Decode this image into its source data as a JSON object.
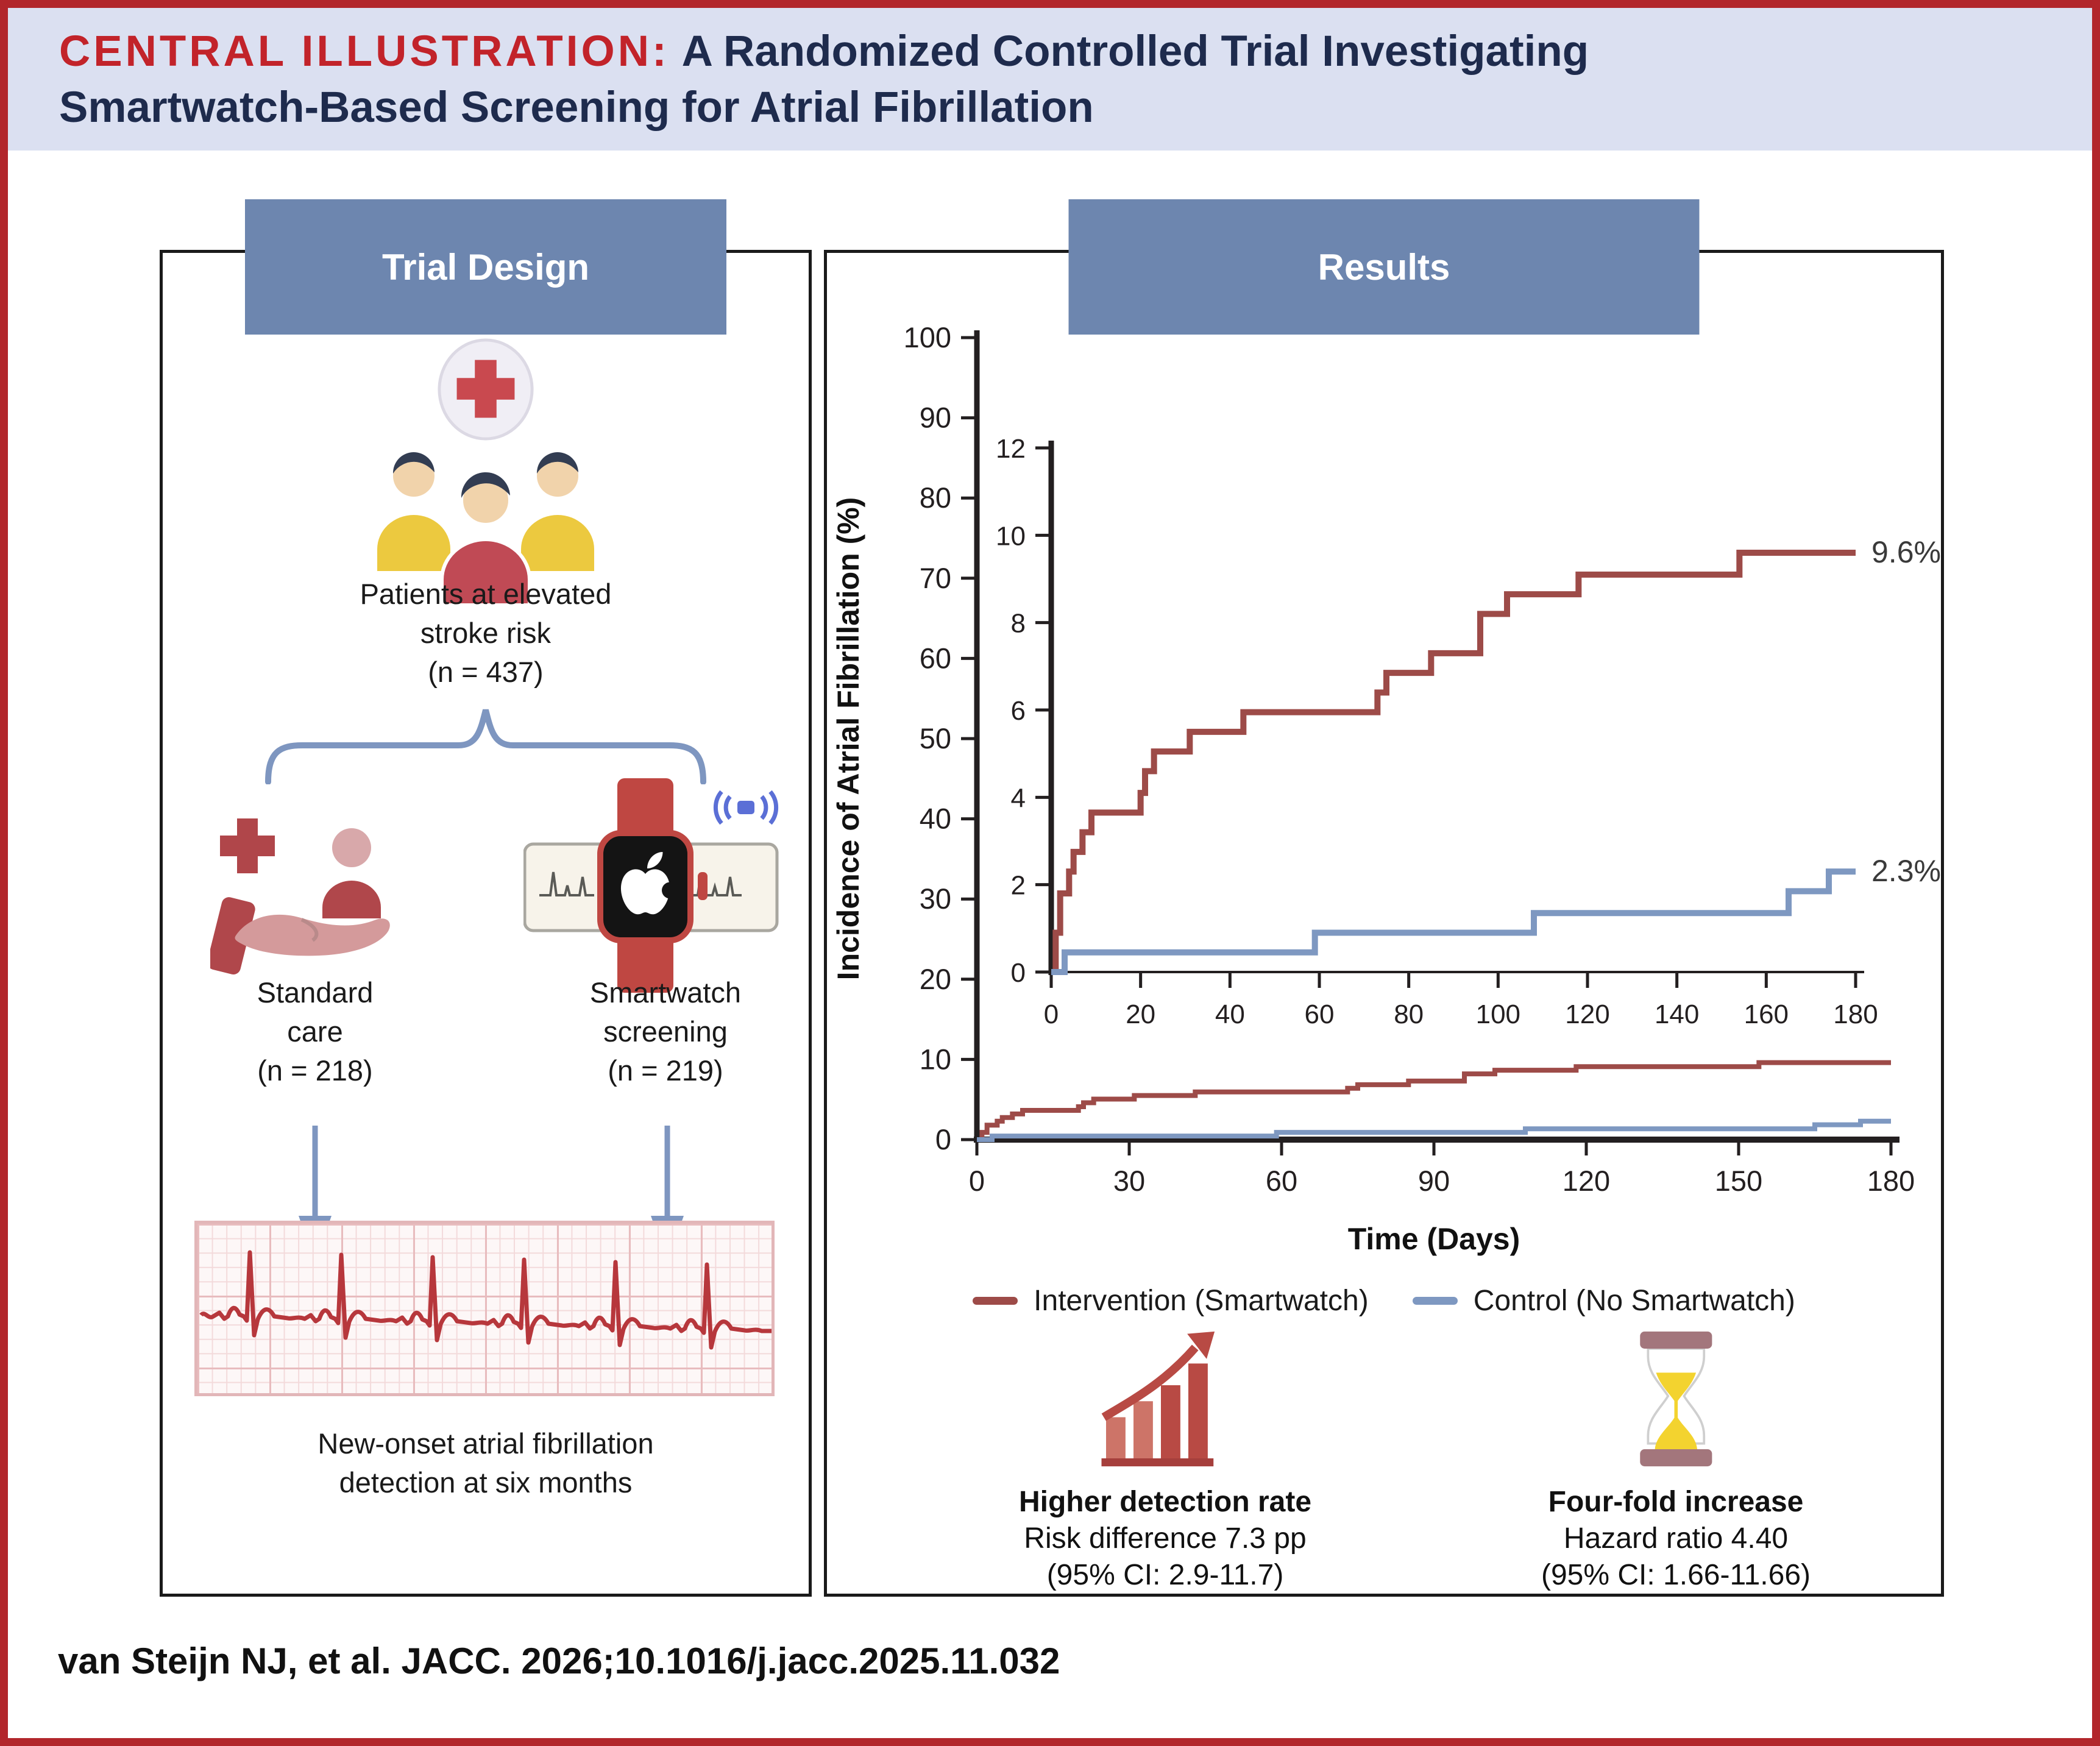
{
  "figure": {
    "label": "CENTRAL ILLUSTRATION:",
    "title_line1": "A Randomized Controlled Trial Investigating",
    "title_line2": "Smartwatch-Based Screening for Atrial Fibrillation",
    "citation": "van Steijn NJ, et al. JACC. 2026;10.1016/j.jacc.2025.11.032"
  },
  "trial_design": {
    "header": "Trial Design",
    "population": [
      "Patients at elevated",
      "stroke risk",
      "(n = 437)"
    ],
    "standard_arm": [
      "Standard",
      "care",
      "(n = 218)"
    ],
    "smartwatch_arm": [
      "Smartwatch",
      "screening",
      "(n = 219)"
    ],
    "outcome": [
      "New-onset atrial fibrillation",
      "detection at six months"
    ]
  },
  "results": {
    "header": "Results",
    "stats": [
      {
        "icon": "rising-bar-chart",
        "title": "Higher detection rate",
        "line2": "Risk difference 7.3 pp",
        "line3": "(95% CI: 2.9-11.7)"
      },
      {
        "icon": "hourglass",
        "title": "Four-fold increase",
        "line2": "Hazard ratio 4.40",
        "line3": "(95% CI: 1.66-11.66)"
      }
    ]
  },
  "colors": {
    "outer_border_red": "#b2262b",
    "banner_bg": "#dbe0f1",
    "banner_label_red": "#c2232a",
    "banner_navy": "#1e2b4d",
    "header_bar_blue": "#6d86af",
    "brace_arrow_blue": "#7e96c0",
    "intervention_red": "#9d4b48",
    "control_blue": "#7e98c1",
    "axis_black": "#231f20"
  },
  "chart_data": {
    "type": "line",
    "subtype": "kaplan-meier-cumulative-incidence",
    "title": "",
    "xlabel": "Time (Days)",
    "ylabel": "Incidence of Atrial Fibrillation (%)",
    "grid": false,
    "legend_position": "bottom",
    "main_axes": {
      "xlim": [
        0,
        180
      ],
      "ylim": [
        0,
        100
      ],
      "xticks": [
        0,
        30,
        60,
        90,
        120,
        150,
        180
      ],
      "yticks": [
        0,
        10,
        20,
        30,
        40,
        50,
        60,
        70,
        80,
        90,
        100
      ]
    },
    "inset_axes": {
      "xlim": [
        0,
        180
      ],
      "ylim": [
        0,
        12
      ],
      "xticks": [
        0,
        20,
        40,
        60,
        80,
        100,
        120,
        140,
        160,
        180
      ],
      "yticks": [
        0,
        2,
        4,
        6,
        8,
        10,
        12
      ]
    },
    "series": [
      {
        "name": "Intervention (Smartwatch)",
        "color": "#9d4b48",
        "end_value": 9.6,
        "end_label": "9.6%",
        "points": [
          [
            0,
            0
          ],
          [
            1,
            0.9
          ],
          [
            2,
            1.8
          ],
          [
            4,
            2.3
          ],
          [
            5,
            2.75
          ],
          [
            7,
            3.2
          ],
          [
            9,
            3.65
          ],
          [
            20,
            4.1
          ],
          [
            21,
            4.6
          ],
          [
            23,
            5.05
          ],
          [
            31,
            5.5
          ],
          [
            43,
            5.95
          ],
          [
            73,
            6.4
          ],
          [
            75,
            6.85
          ],
          [
            85,
            7.3
          ],
          [
            96,
            8.2
          ],
          [
            102,
            8.65
          ],
          [
            118,
            9.1
          ],
          [
            154,
            9.6
          ],
          [
            180,
            9.6
          ]
        ]
      },
      {
        "name": "Control (No Smartwatch)",
        "color": "#7e98c1",
        "end_value": 2.3,
        "end_label": "2.3%",
        "points": [
          [
            0,
            0
          ],
          [
            3,
            0.45
          ],
          [
            59,
            0.9
          ],
          [
            108,
            1.35
          ],
          [
            165,
            1.85
          ],
          [
            174,
            2.3
          ],
          [
            180,
            2.3
          ]
        ]
      }
    ]
  }
}
